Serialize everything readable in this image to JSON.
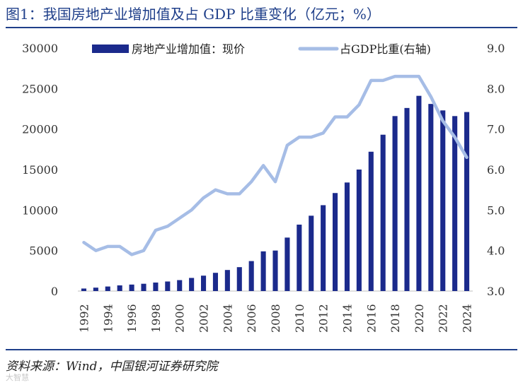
{
  "title": "图1：我国房地产业增加值及占 GDP 比重变化（亿元；%）",
  "source": "资料来源：Wind，中国银河证券研究院",
  "watermark": "大智慧",
  "colors": {
    "title": "#1f3f8a",
    "bar": "#1b2a8c",
    "line": "#a6bde6",
    "rule": "#1f3f8a"
  },
  "chart_data": {
    "type": "bar",
    "categories": [
      "1992",
      "1993",
      "1994",
      "1995",
      "1996",
      "1997",
      "1998",
      "1999",
      "2000",
      "2001",
      "2002",
      "2003",
      "2004",
      "2005",
      "2006",
      "2007",
      "2008",
      "2009",
      "2010",
      "2011",
      "2012",
      "2013",
      "2014",
      "2015",
      "2016",
      "2017",
      "2018",
      "2019",
      "2020",
      "2021",
      "2022",
      "2023",
      "2024"
    ],
    "x_tick_labels": [
      "1992",
      "1994",
      "1996",
      "1998",
      "2000",
      "2002",
      "2004",
      "2006",
      "2008",
      "2010",
      "2012",
      "2014",
      "2016",
      "2018",
      "2020",
      "2022",
      "2024"
    ],
    "series": [
      {
        "name": "房地产业增加值：现价",
        "type": "bar",
        "axis": "left",
        "values": [
          310,
          420,
          560,
          700,
          800,
          900,
          1050,
          1180,
          1350,
          1620,
          1900,
          2250,
          2600,
          2950,
          3700,
          4900,
          5000,
          6600,
          8200,
          9300,
          10600,
          12100,
          13400,
          15000,
          17200,
          19300,
          21600,
          22600,
          24100,
          23100,
          22300,
          21600,
          22100
        ]
      },
      {
        "name": "占GDP比重(右轴)",
        "type": "line",
        "axis": "right",
        "values": [
          4.2,
          4.0,
          4.1,
          4.1,
          3.9,
          4.0,
          4.5,
          4.6,
          4.8,
          5.0,
          5.3,
          5.5,
          5.4,
          5.4,
          5.7,
          6.1,
          5.7,
          6.6,
          6.8,
          6.8,
          6.9,
          7.3,
          7.3,
          7.6,
          8.2,
          8.2,
          8.3,
          8.3,
          8.3,
          7.8,
          7.2,
          6.8,
          6.3
        ]
      }
    ],
    "left_axis": {
      "ylim": [
        0,
        30000
      ],
      "ticks": [
        "0",
        "5000",
        "10000",
        "15000",
        "20000",
        "25000",
        "30000"
      ]
    },
    "right_axis": {
      "ylim": [
        3.0,
        9.0
      ],
      "ticks": [
        "3.0",
        "4.0",
        "5.0",
        "6.0",
        "7.0",
        "8.0",
        "9.0"
      ]
    },
    "grid": false,
    "legend": "top"
  }
}
